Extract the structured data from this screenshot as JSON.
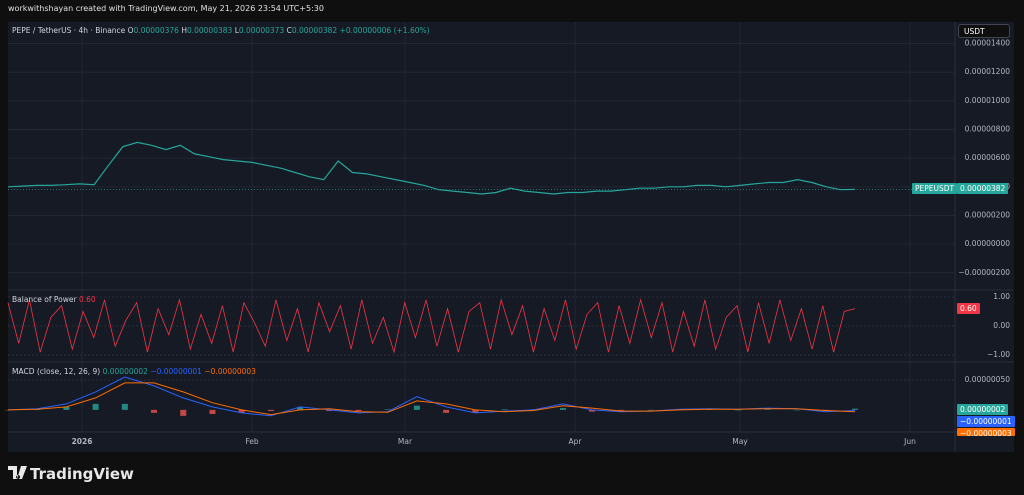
{
  "top_bar": "workwithshayan created with TradingView.com, May 21, 2026 23:54 UTC+5:30",
  "currency": "USDT",
  "header": {
    "symbol": "PEPE / TetherUS · 4h · Binance",
    "open_label": "O",
    "open": "0.00000376",
    "high_label": "H",
    "high": "0.00000383",
    "low_label": "L",
    "low": "0.00000373",
    "close_label": "C",
    "close": "0.00000382",
    "change": "+0.00000006 (+1.60%)"
  },
  "time_axis": [
    "2026",
    "Feb",
    "Mar",
    "Apr",
    "May",
    "Jun"
  ],
  "brand": "TradingView",
  "chart_data": [
    {
      "type": "line",
      "series": [
        {
          "name": "PEPEUSDT",
          "color": "#26a69a",
          "values": [
            4e-06,
            4.05e-06,
            4.1e-06,
            4.1e-06,
            4.15e-06,
            4.2e-06,
            4.15e-06,
            5.5e-06,
            6.8e-06,
            7.1e-06,
            6.9e-06,
            6.6e-06,
            6.9e-06,
            6.3e-06,
            6.1e-06,
            5.9e-06,
            5.8e-06,
            5.7e-06,
            5.5e-06,
            5.3e-06,
            5e-06,
            4.7e-06,
            4.5e-06,
            5.8e-06,
            5e-06,
            4.9e-06,
            4.7e-06,
            4.5e-06,
            4.3e-06,
            4.1e-06,
            3.8e-06,
            3.7e-06,
            3.6e-06,
            3.5e-06,
            3.6e-06,
            3.9e-06,
            3.7e-06,
            3.6e-06,
            3.5e-06,
            3.6e-06,
            3.6e-06,
            3.7e-06,
            3.7e-06,
            3.8e-06,
            3.9e-06,
            3.9e-06,
            4e-06,
            4e-06,
            4.1e-06,
            4.1e-06,
            4e-06,
            4.1e-06,
            4.2e-06,
            4.3e-06,
            4.3e-06,
            4.5e-06,
            4.3e-06,
            4e-06,
            3.8e-06,
            3.82e-06
          ]
        }
      ],
      "ylim": [
        -3.2e-06,
        1.55e-05
      ],
      "yticks": [
        {
          "value": 1.4e-05,
          "label": "0.00001400"
        },
        {
          "value": 1.2e-05,
          "label": "0.00001200"
        },
        {
          "value": 1e-05,
          "label": "0.00001000"
        },
        {
          "value": 8e-06,
          "label": "0.00000800"
        },
        {
          "value": 6e-06,
          "label": "0.00000600"
        },
        {
          "value": 4e-06,
          "label": "0.00000400"
        },
        {
          "value": 2e-06,
          "label": "0.00000200"
        },
        {
          "value": 0,
          "label": "0.00000000"
        },
        {
          "value": -2e-06,
          "label": "−0.00000200"
        }
      ],
      "grid": true
    },
    {
      "type": "line",
      "title": "Balance of Power",
      "last_label": "0.60",
      "series": [
        {
          "name": "Balance of Power",
          "color": "#f23645",
          "values": [
            0.8,
            -0.6,
            0.9,
            -0.9,
            0.3,
            0.7,
            -0.8,
            0.5,
            -0.4,
            0.9,
            -0.7,
            0.2,
            0.8,
            -0.9,
            0.6,
            -0.3,
            0.9,
            -0.8,
            0.4,
            -0.6,
            0.7,
            -0.9,
            0.8,
            0.1,
            -0.7,
            0.9,
            -0.5,
            0.6,
            -0.9,
            0.8,
            -0.2,
            0.7,
            -0.8,
            0.9,
            -0.6,
            0.3,
            -0.9,
            0.8,
            -0.4,
            0.9,
            -0.7,
            0.6,
            -0.9,
            0.5,
            0.8,
            -0.8,
            0.9,
            -0.3,
            0.7,
            -0.9,
            0.6,
            -0.5,
            0.9,
            -0.8,
            0.4,
            0.8,
            -0.9,
            0.7,
            -0.6,
            0.9,
            -0.4,
            0.8,
            -0.9,
            0.5,
            -0.7,
            0.9,
            -0.8,
            0.3,
            0.7,
            -0.9,
            0.8,
            -0.6,
            0.9,
            -0.5,
            0.6,
            -0.8,
            0.7,
            -0.9,
            0.5,
            0.6
          ]
        }
      ],
      "ylim": [
        -1.24,
        1.17
      ],
      "yticks": [
        {
          "value": 1,
          "label": "1.00"
        },
        {
          "value": 0,
          "label": "0.00"
        },
        {
          "value": -1,
          "label": "−1.00"
        }
      ]
    },
    {
      "type": "macd",
      "title": "MACD (close, 12, 26, 9)",
      "last_labels": [
        "0.00000002",
        "−0.00000001",
        "−0.00000003"
      ],
      "series": [
        {
          "name": "Histogram",
          "color": "#26a69a",
          "values": [
            0,
            1e-08,
            5e-08,
            1e-07,
            1e-07,
            -5e-08,
            -1e-07,
            -7e-08,
            -5e-08,
            -2e-08,
            5e-08,
            -2e-08,
            -2e-08,
            1e-08,
            7e-08,
            -5e-08,
            -5e-08,
            1e-08,
            1e-08,
            3e-08,
            -3e-08,
            -1e-08,
            0,
            1e-08,
            1e-08,
            0,
            1e-08,
            0,
            -2e-08,
            2e-08
          ]
        },
        {
          "name": "MACD",
          "color": "#2962ff",
          "values": [
            0,
            2e-08,
            1e-07,
            3e-07,
            5.5e-07,
            4e-07,
            2e-07,
            5e-08,
            -5e-08,
            -1e-07,
            5e-08,
            0,
            -5e-08,
            -3e-08,
            2.2e-07,
            5e-08,
            -5e-08,
            -2e-08,
            0,
            1e-07,
            0,
            -3e-08,
            -2e-08,
            1e-08,
            2e-08,
            1e-08,
            3e-08,
            2e-08,
            -3e-08,
            -1e-08
          ]
        },
        {
          "name": "Signal",
          "color": "#ff6d00",
          "values": [
            0,
            1e-08,
            5e-08,
            2e-07,
            4.5e-07,
            4.5e-07,
            3e-07,
            1.2e-07,
            0,
            -8e-08,
            0,
            2e-08,
            -3e-08,
            -4e-08,
            1.5e-07,
            1e-07,
            0,
            -3e-08,
            -1e-08,
            7e-08,
            3e-08,
            -2e-08,
            -2e-08,
            0,
            1e-08,
            1e-08,
            2e-08,
            2e-08,
            -1e-08,
            -3e-08
          ]
        }
      ],
      "ylim": [
        -3.7e-07,
        8e-07
      ],
      "yticks": [
        {
          "value": 5e-07,
          "label": "0.00000050"
        }
      ]
    }
  ]
}
